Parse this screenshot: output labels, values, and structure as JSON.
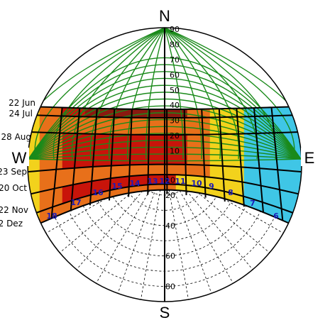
{
  "chart_data": {
    "type": "polar-sunpath",
    "compass": {
      "north": "N",
      "south": "S",
      "east": "E",
      "west": "W"
    },
    "altitude_ticks_upper": [
      "90",
      "80",
      "70",
      "60",
      "50",
      "40",
      "30",
      "20",
      "10"
    ],
    "altitude_ticks_lower": [
      "10",
      "20",
      "40",
      "60",
      "80"
    ],
    "altitude_tick_values_upper": [
      90,
      80,
      70,
      60,
      50,
      40,
      30,
      20,
      10
    ],
    "altitude_tick_values_lower": [
      10,
      20,
      40,
      60,
      80
    ],
    "hour_labels": [
      {
        "label": "6",
        "azimuth_deg": 112,
        "altitude_deg": -30
      },
      {
        "label": "7",
        "azimuth_deg": 121,
        "altitude_deg": -22
      },
      {
        "label": "8",
        "azimuth_deg": 132,
        "altitude_deg": -17
      },
      {
        "label": "9",
        "azimuth_deg": 144,
        "altitude_deg": -12
      },
      {
        "label": "10",
        "azimuth_deg": 155,
        "altitude_deg": -11
      },
      {
        "label": "11",
        "azimuth_deg": 167,
        "altitude_deg": -8
      },
      {
        "label": "12",
        "azimuth_deg": 180,
        "altitude_deg": -8
      },
      {
        "label": "13",
        "azimuth_deg": 193,
        "altitude_deg": -8
      },
      {
        "label": "14",
        "azimuth_deg": 209,
        "altitude_deg": -11
      },
      {
        "label": "15",
        "azimuth_deg": 222,
        "altitude_deg": -14
      },
      {
        "label": "16",
        "azimuth_deg": 234,
        "altitude_deg": -18
      },
      {
        "label": "17",
        "azimuth_deg": 245,
        "altitude_deg": -23
      },
      {
        "label": "18",
        "azimuth_deg": 252,
        "altitude_deg": -30
      }
    ],
    "date_labels": [
      "22 Jun",
      "24 Jul",
      "28 Aug",
      "23 Sep",
      "20 Oct",
      "22 Nov",
      "22 Dez"
    ],
    "series_colors": {
      "grid_green": "#1a8a1a",
      "band_black": "#000000",
      "hot_red": "#c8140a",
      "warm_orange": "#e8701a",
      "mild_yellow": "#f2d21c",
      "cool_cyan": "#3fc6e6",
      "dark_red": "#8a1a10"
    }
  }
}
